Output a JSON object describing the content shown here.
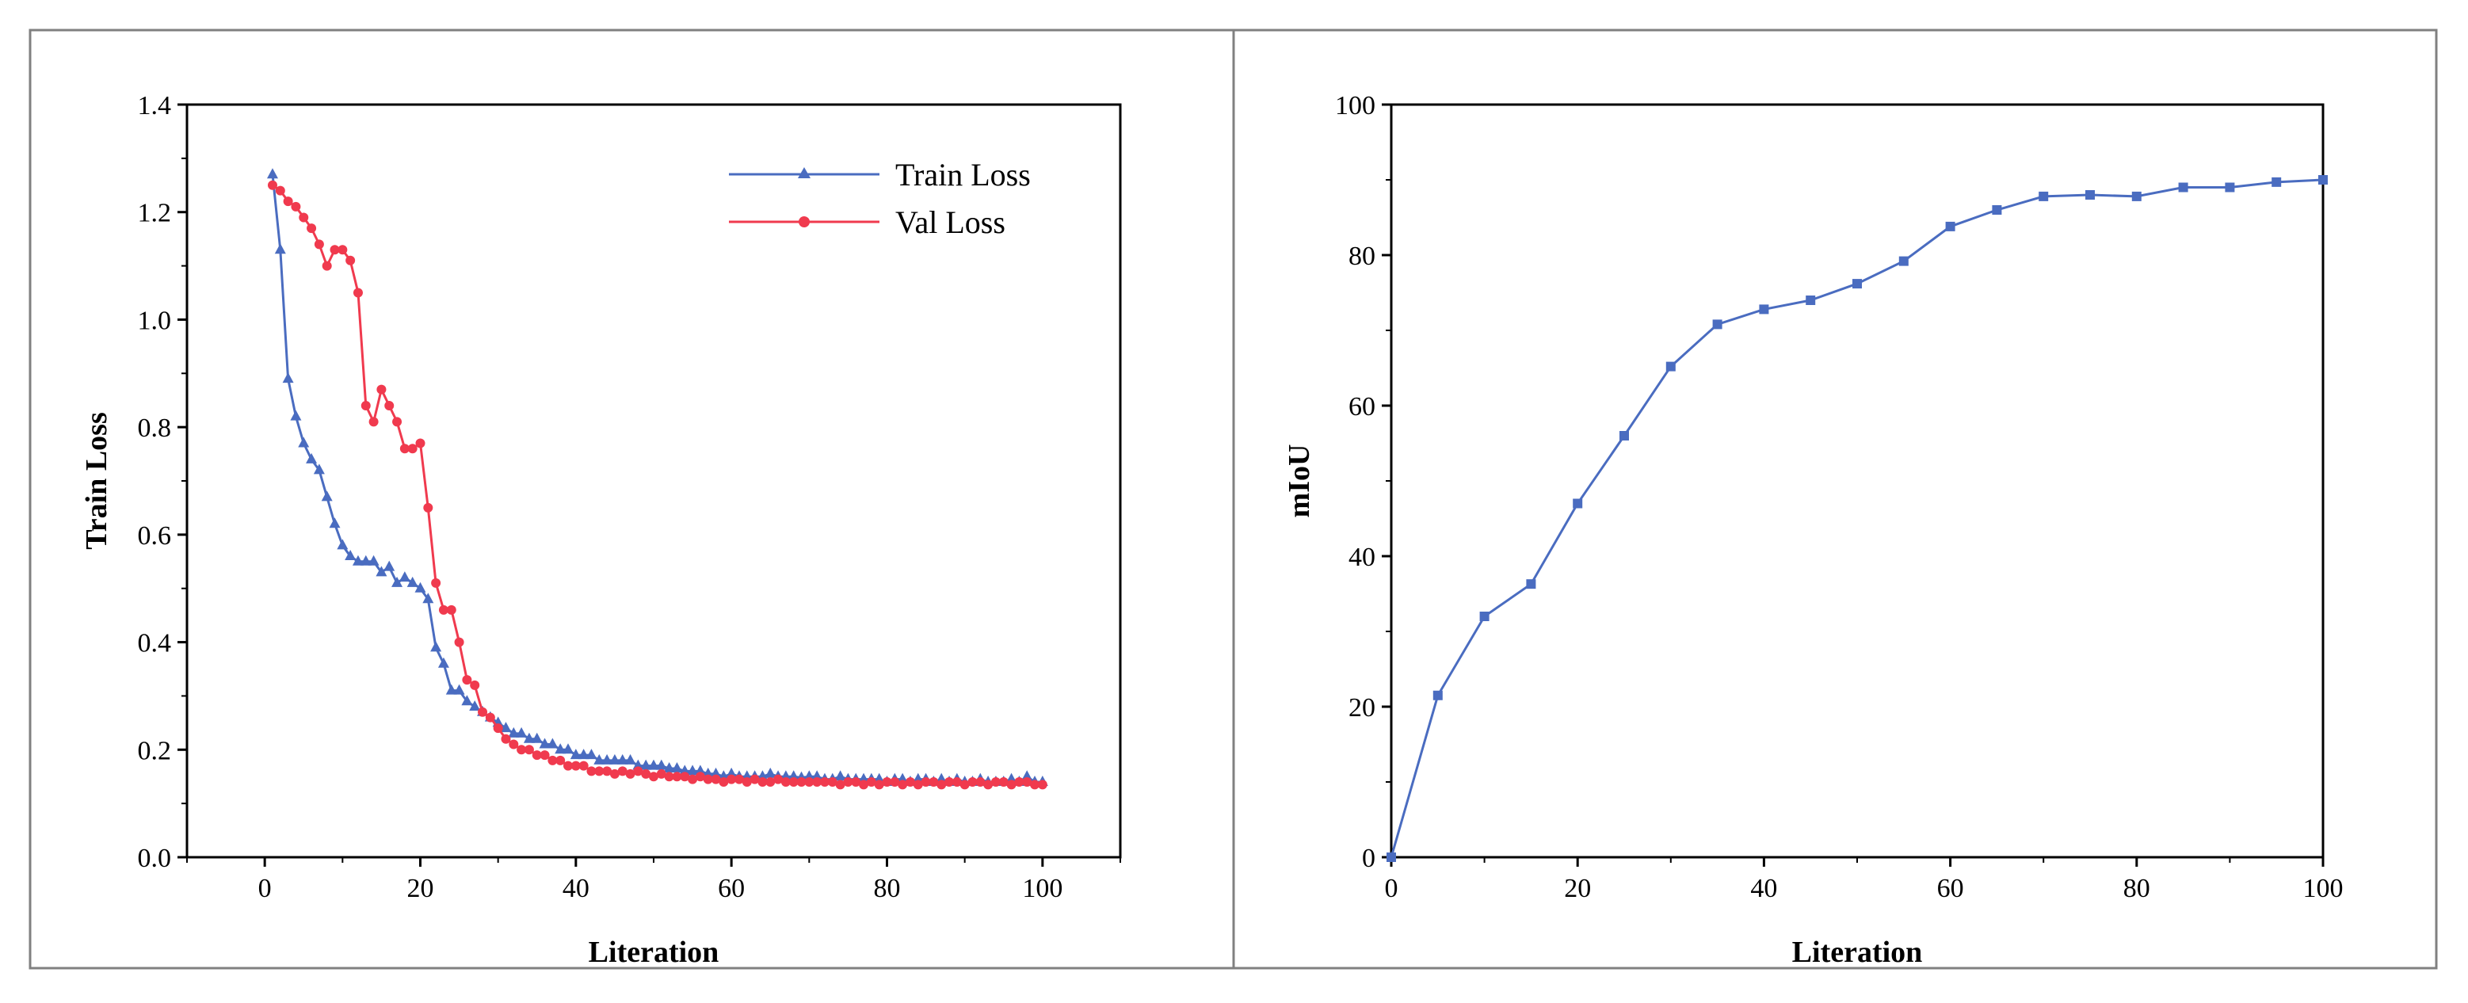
{
  "colors": {
    "train": "#4a6cc0",
    "val": "#f03a4e",
    "miou": "#4a6cc0",
    "frame": "#808080",
    "axis": "#000000"
  },
  "chart_data": [
    {
      "type": "line",
      "xlabel": "Literation",
      "ylabel": "Train Loss",
      "xlim": [
        -10,
        110
      ],
      "ylim": [
        0.0,
        1.4
      ],
      "xticks": [
        "0",
        "20",
        "40",
        "60",
        "80",
        "100"
      ],
      "yticks": [
        "0.0",
        "0.2",
        "0.4",
        "0.6",
        "0.8",
        "1.0",
        "1.2",
        "1.4"
      ],
      "legend_position": "top-right",
      "x": [
        1,
        2,
        3,
        4,
        5,
        6,
        7,
        8,
        9,
        10,
        11,
        12,
        13,
        14,
        15,
        16,
        17,
        18,
        19,
        20,
        21,
        22,
        23,
        24,
        25,
        26,
        27,
        28,
        29,
        30,
        31,
        32,
        33,
        34,
        35,
        36,
        37,
        38,
        39,
        40,
        41,
        42,
        43,
        44,
        45,
        46,
        47,
        48,
        49,
        50,
        51,
        52,
        53,
        54,
        55,
        56,
        57,
        58,
        59,
        60,
        61,
        62,
        63,
        64,
        65,
        66,
        67,
        68,
        69,
        70,
        71,
        72,
        73,
        74,
        75,
        76,
        77,
        78,
        79,
        80,
        81,
        82,
        83,
        84,
        85,
        86,
        87,
        88,
        89,
        90,
        91,
        92,
        93,
        94,
        95,
        96,
        97,
        98,
        99,
        100
      ],
      "series": [
        {
          "name": "Train Loss",
          "marker": "triangle",
          "values": [
            1.27,
            1.13,
            0.89,
            0.82,
            0.77,
            0.74,
            0.72,
            0.67,
            0.62,
            0.58,
            0.56,
            0.55,
            0.55,
            0.55,
            0.53,
            0.54,
            0.51,
            0.52,
            0.51,
            0.5,
            0.48,
            0.39,
            0.36,
            0.31,
            0.31,
            0.29,
            0.28,
            0.27,
            0.26,
            0.25,
            0.24,
            0.23,
            0.23,
            0.22,
            0.22,
            0.21,
            0.21,
            0.2,
            0.2,
            0.19,
            0.19,
            0.19,
            0.18,
            0.18,
            0.18,
            0.18,
            0.18,
            0.17,
            0.17,
            0.17,
            0.17,
            0.165,
            0.165,
            0.16,
            0.16,
            0.16,
            0.155,
            0.155,
            0.15,
            0.155,
            0.15,
            0.15,
            0.15,
            0.15,
            0.155,
            0.15,
            0.15,
            0.15,
            0.148,
            0.15,
            0.15,
            0.145,
            0.145,
            0.15,
            0.145,
            0.145,
            0.145,
            0.145,
            0.145,
            0.14,
            0.145,
            0.145,
            0.14,
            0.145,
            0.145,
            0.14,
            0.145,
            0.14,
            0.145,
            0.14,
            0.14,
            0.145,
            0.14,
            0.14,
            0.14,
            0.145,
            0.14,
            0.15,
            0.14,
            0.14
          ]
        },
        {
          "name": "Val Loss",
          "marker": "circle",
          "values": [
            1.25,
            1.24,
            1.22,
            1.21,
            1.19,
            1.17,
            1.14,
            1.1,
            1.13,
            1.13,
            1.11,
            1.05,
            0.84,
            0.81,
            0.87,
            0.84,
            0.81,
            0.76,
            0.76,
            0.77,
            0.65,
            0.51,
            0.46,
            0.46,
            0.4,
            0.33,
            0.32,
            0.27,
            0.26,
            0.24,
            0.22,
            0.21,
            0.2,
            0.2,
            0.19,
            0.19,
            0.18,
            0.18,
            0.17,
            0.17,
            0.17,
            0.16,
            0.16,
            0.16,
            0.155,
            0.16,
            0.155,
            0.16,
            0.155,
            0.15,
            0.155,
            0.15,
            0.15,
            0.15,
            0.145,
            0.15,
            0.145,
            0.145,
            0.14,
            0.145,
            0.145,
            0.14,
            0.145,
            0.14,
            0.14,
            0.145,
            0.14,
            0.14,
            0.14,
            0.14,
            0.14,
            0.14,
            0.14,
            0.135,
            0.14,
            0.14,
            0.135,
            0.14,
            0.135,
            0.14,
            0.14,
            0.135,
            0.14,
            0.135,
            0.14,
            0.14,
            0.135,
            0.14,
            0.14,
            0.135,
            0.14,
            0.14,
            0.135,
            0.14,
            0.14,
            0.135,
            0.14,
            0.14,
            0.135,
            0.135
          ]
        }
      ]
    },
    {
      "type": "line",
      "xlabel": "Literation",
      "ylabel": "mIoU",
      "xlim": [
        0,
        100
      ],
      "ylim": [
        0,
        100
      ],
      "xticks": [
        "0",
        "20",
        "40",
        "60",
        "80",
        "100"
      ],
      "yticks": [
        "0",
        "20",
        "40",
        "60",
        "80",
        "100"
      ],
      "x": [
        0,
        5,
        10,
        15,
        20,
        25,
        30,
        35,
        40,
        45,
        50,
        55,
        60,
        65,
        70,
        75,
        80,
        85,
        90,
        95,
        100
      ],
      "series": [
        {
          "name": "mIoU",
          "marker": "square",
          "values": [
            0,
            21.5,
            32,
            36.3,
            47,
            56,
            65.2,
            70.8,
            72.8,
            74,
            76.2,
            79.2,
            83.8,
            86,
            87.8,
            88,
            87.8,
            89,
            89,
            89.7,
            90
          ]
        }
      ]
    }
  ]
}
